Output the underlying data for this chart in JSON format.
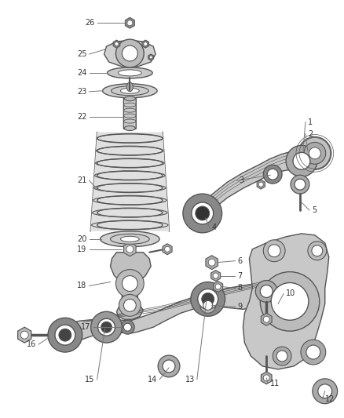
{
  "background_color": "#ffffff",
  "fig_width": 4.38,
  "fig_height": 5.33,
  "dpi": 100,
  "line_color": "#555555",
  "text_color": "#333333",
  "part_fill": "#d0d0d0",
  "part_edge": "#555555",
  "dark_fill": "#888888",
  "spring_fill": "#c0c0c0",
  "callout_font": 7.0
}
